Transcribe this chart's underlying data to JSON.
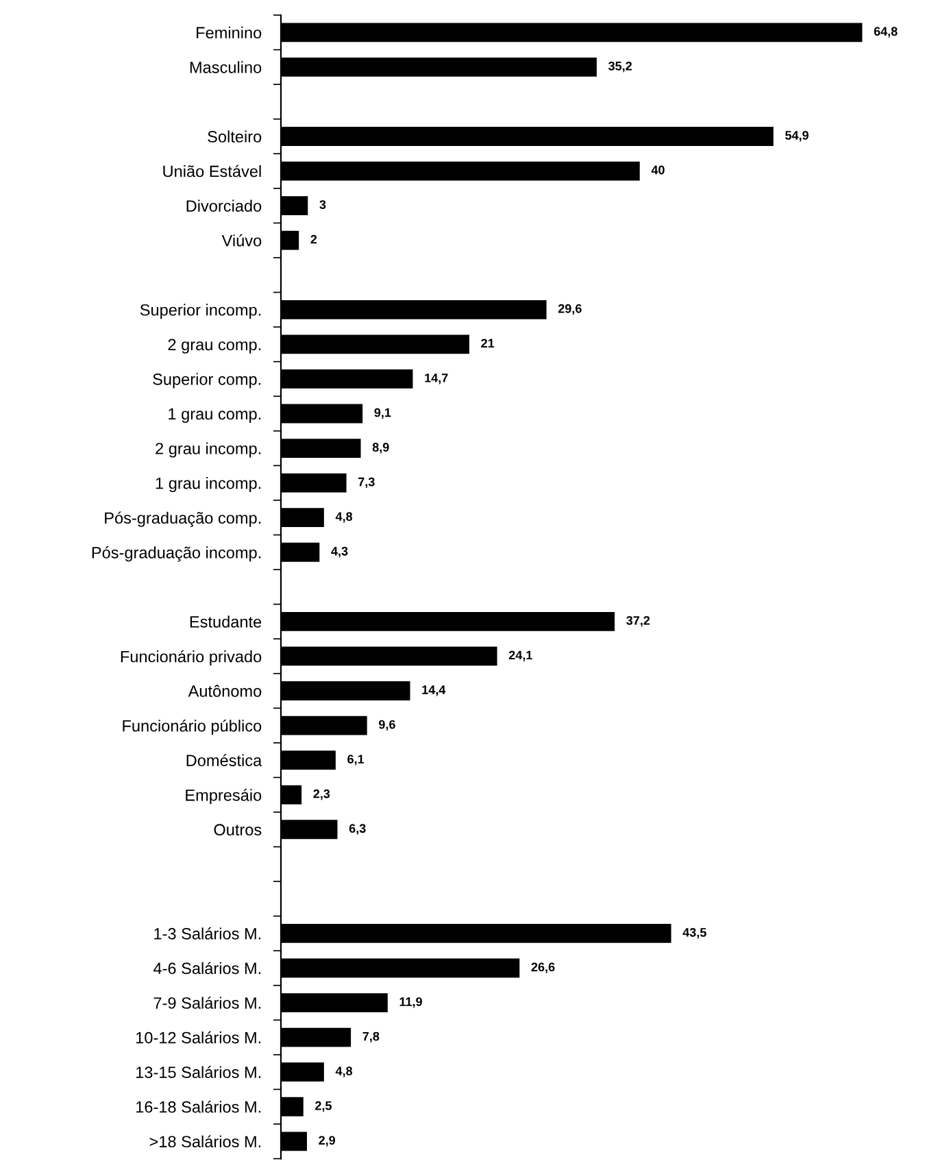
{
  "chart_data": {
    "type": "bar",
    "orientation": "horizontal",
    "color": "#000000",
    "data_labels": true,
    "grid": false,
    "tick_labels": "y",
    "categories": [
      "Feminino",
      "Masculino",
      null,
      "Solteiro",
      "União Estável",
      "Divorciado",
      "Viúvo",
      null,
      "Superior incomp.",
      "2 grau comp.",
      "Superior comp.",
      "1 grau comp.",
      "2 grau incomp.",
      "1 grau incomp.",
      "Pós-graduação comp.",
      "Pós-graduação incomp.",
      null,
      "Estudante",
      "Funcionário privado",
      "Autônomo",
      "Funcionário público",
      "Doméstica",
      "Empresáio",
      "Outros",
      null,
      null,
      "1-3 Salários M.",
      "4-6 Salários M.",
      "7-9 Salários M.",
      "10-12 Salários M.",
      "13-15 Salários M.",
      "16-18 Salários M.",
      ">18 Salários M."
    ],
    "values": [
      64.8,
      35.2,
      null,
      54.9,
      40,
      3,
      2,
      null,
      29.6,
      21,
      14.7,
      9.1,
      8.9,
      7.3,
      4.8,
      4.3,
      null,
      37.2,
      24.1,
      14.4,
      9.6,
      6.1,
      2.3,
      6.3,
      null,
      null,
      43.5,
      26.6,
      11.9,
      7.8,
      4.8,
      2.5,
      2.9
    ],
    "value_labels": [
      "64,8",
      "35,2",
      null,
      "54,9",
      "40",
      "3",
      "2",
      null,
      "29,6",
      "21",
      "14,7",
      "9,1",
      "8,9",
      "7,3",
      "4,8",
      "4,3",
      null,
      "37,2",
      "24,1",
      "14,4",
      "9,6",
      "6,1",
      "2,3",
      "6,3",
      null,
      null,
      "43,5",
      "26,6",
      "11,9",
      "7,8",
      "4,8",
      "2,5",
      "2,9"
    ]
  }
}
